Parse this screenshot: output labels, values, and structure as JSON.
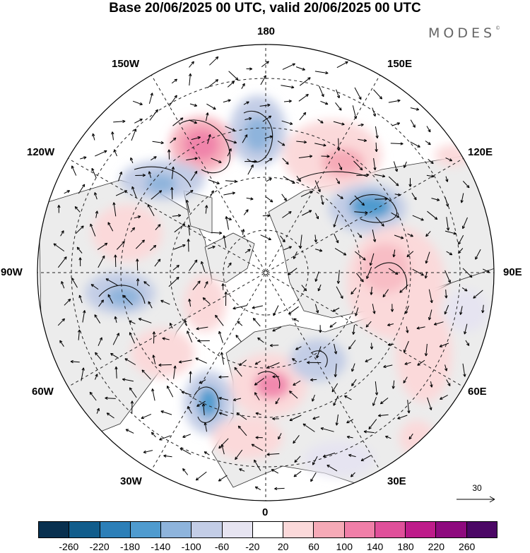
{
  "title": "Base 20/06/2025 00 UTC, valid 20/06/2025 00 UTC",
  "brand": "MODES",
  "brand_mark": "©",
  "longitude_labels": {
    "top": "180",
    "top_right": "150E",
    "upper_right": "120E",
    "right": "90E",
    "lower_right": "60E",
    "bottom_right": "30E",
    "bottom": "0",
    "bottom_left": "30W",
    "lower_left": "60W",
    "left": "90W",
    "upper_left": "120W",
    "top_left": "150W"
  },
  "reference_vector": {
    "label": "30",
    "value": 30
  },
  "colorbar": {
    "colors": [
      "#08304f",
      "#115d8c",
      "#2c7fb8",
      "#4f9bcf",
      "#8eb4dc",
      "#c3cde6",
      "#e6e4f1",
      "#ffffff",
      "#fbd9da",
      "#f6aab7",
      "#f07fa8",
      "#e0509a",
      "#be1c8a",
      "#8e0a7e",
      "#4b0765"
    ],
    "tick_labels": [
      "-260",
      "-220",
      "-180",
      "-140",
      "-100",
      "-60",
      "-20",
      "20",
      "60",
      "100",
      "140",
      "180",
      "220",
      "260"
    ]
  },
  "map_colors": {
    "land_gray": "#ececec",
    "ocean": "#ffffff",
    "coast": "#333333",
    "grid": "#222222"
  }
}
